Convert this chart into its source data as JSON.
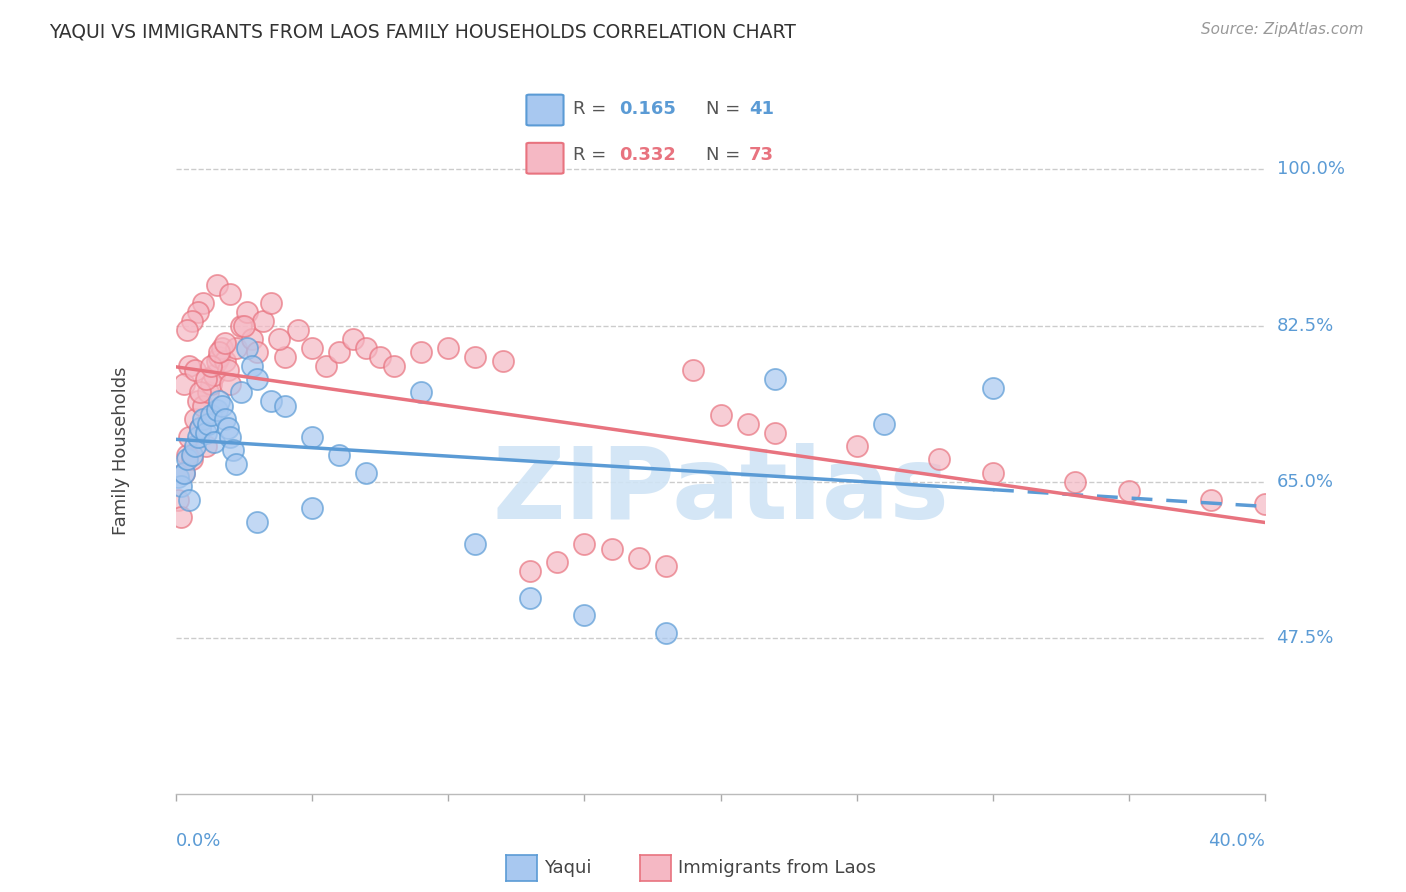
{
  "title": "YAQUI VS IMMIGRANTS FROM LAOS FAMILY HOUSEHOLDS CORRELATION CHART",
  "source": "Source: ZipAtlas.com",
  "ylabel": "Family Households",
  "ytick_vals": [
    47.5,
    65.0,
    82.5,
    100.0
  ],
  "ytick_labels": [
    "47.5%",
    "65.0%",
    "82.5%",
    "100.0%"
  ],
  "yaqui_R": 0.165,
  "yaqui_N": 41,
  "laos_R": 0.332,
  "laos_N": 73,
  "x_min": 0.0,
  "x_max": 40.0,
  "y_min": 30.0,
  "y_max": 107.0,
  "color_blue_fill": "#A8C8F0",
  "color_pink_fill": "#F5B8C4",
  "color_blue_edge": "#5B9BD5",
  "color_pink_edge": "#E8737F",
  "color_blue_text": "#5B9BD5",
  "color_pink_text": "#E8737F",
  "color_axis_labels": "#5B9BD5",
  "watermark_color": "#D0E4F5",
  "yaqui_x": [
    0.1,
    0.2,
    0.3,
    0.4,
    0.5,
    0.6,
    0.7,
    0.8,
    0.9,
    1.0,
    1.1,
    1.2,
    1.3,
    1.4,
    1.5,
    1.6,
    1.7,
    1.8,
    1.9,
    2.0,
    2.1,
    2.2,
    2.4,
    2.6,
    2.8,
    3.0,
    3.5,
    4.0,
    5.0,
    6.0,
    7.0,
    9.0,
    11.0,
    13.0,
    15.0,
    18.0,
    22.0,
    26.0,
    30.0,
    5.0,
    3.0
  ],
  "yaqui_y": [
    65.5,
    64.5,
    66.0,
    67.5,
    63.0,
    68.0,
    69.0,
    70.0,
    71.0,
    72.0,
    70.5,
    71.5,
    72.5,
    69.5,
    73.0,
    74.0,
    73.5,
    72.0,
    71.0,
    70.0,
    68.5,
    67.0,
    75.0,
    80.0,
    78.0,
    76.5,
    74.0,
    73.5,
    70.0,
    68.0,
    66.0,
    75.0,
    58.0,
    52.0,
    50.0,
    48.0,
    76.5,
    71.5,
    75.5,
    62.0,
    60.5
  ],
  "laos_x": [
    0.1,
    0.2,
    0.3,
    0.4,
    0.5,
    0.6,
    0.7,
    0.8,
    0.9,
    1.0,
    1.1,
    1.2,
    1.3,
    1.4,
    1.5,
    1.6,
    1.7,
    1.8,
    1.9,
    2.0,
    2.2,
    2.4,
    2.6,
    2.8,
    3.0,
    3.2,
    3.5,
    4.0,
    4.5,
    5.0,
    5.5,
    6.0,
    6.5,
    7.0,
    7.5,
    8.0,
    9.0,
    10.0,
    11.0,
    12.0,
    13.0,
    14.0,
    15.0,
    16.0,
    17.0,
    18.0,
    19.0,
    20.0,
    21.0,
    22.0,
    25.0,
    28.0,
    30.0,
    33.0,
    35.0,
    38.0,
    40.0,
    2.5,
    3.8,
    1.5,
    2.0,
    1.0,
    0.8,
    0.6,
    0.4,
    0.5,
    0.3,
    0.7,
    0.9,
    1.1,
    1.3,
    1.6,
    1.8
  ],
  "laos_y": [
    63.0,
    61.0,
    66.0,
    68.0,
    70.0,
    67.5,
    72.0,
    74.0,
    71.0,
    73.5,
    69.0,
    75.0,
    76.0,
    77.0,
    78.5,
    79.0,
    80.0,
    78.5,
    77.5,
    76.0,
    80.0,
    82.5,
    84.0,
    81.0,
    79.5,
    83.0,
    85.0,
    79.0,
    82.0,
    80.0,
    78.0,
    79.5,
    81.0,
    80.0,
    79.0,
    78.0,
    79.5,
    80.0,
    79.0,
    78.5,
    55.0,
    56.0,
    58.0,
    57.5,
    56.5,
    55.5,
    77.5,
    72.5,
    71.5,
    70.5,
    69.0,
    67.5,
    66.0,
    65.0,
    64.0,
    63.0,
    62.5,
    82.5,
    81.0,
    87.0,
    86.0,
    85.0,
    84.0,
    83.0,
    82.0,
    78.0,
    76.0,
    77.5,
    75.0,
    76.5,
    78.0,
    79.5,
    80.5
  ]
}
